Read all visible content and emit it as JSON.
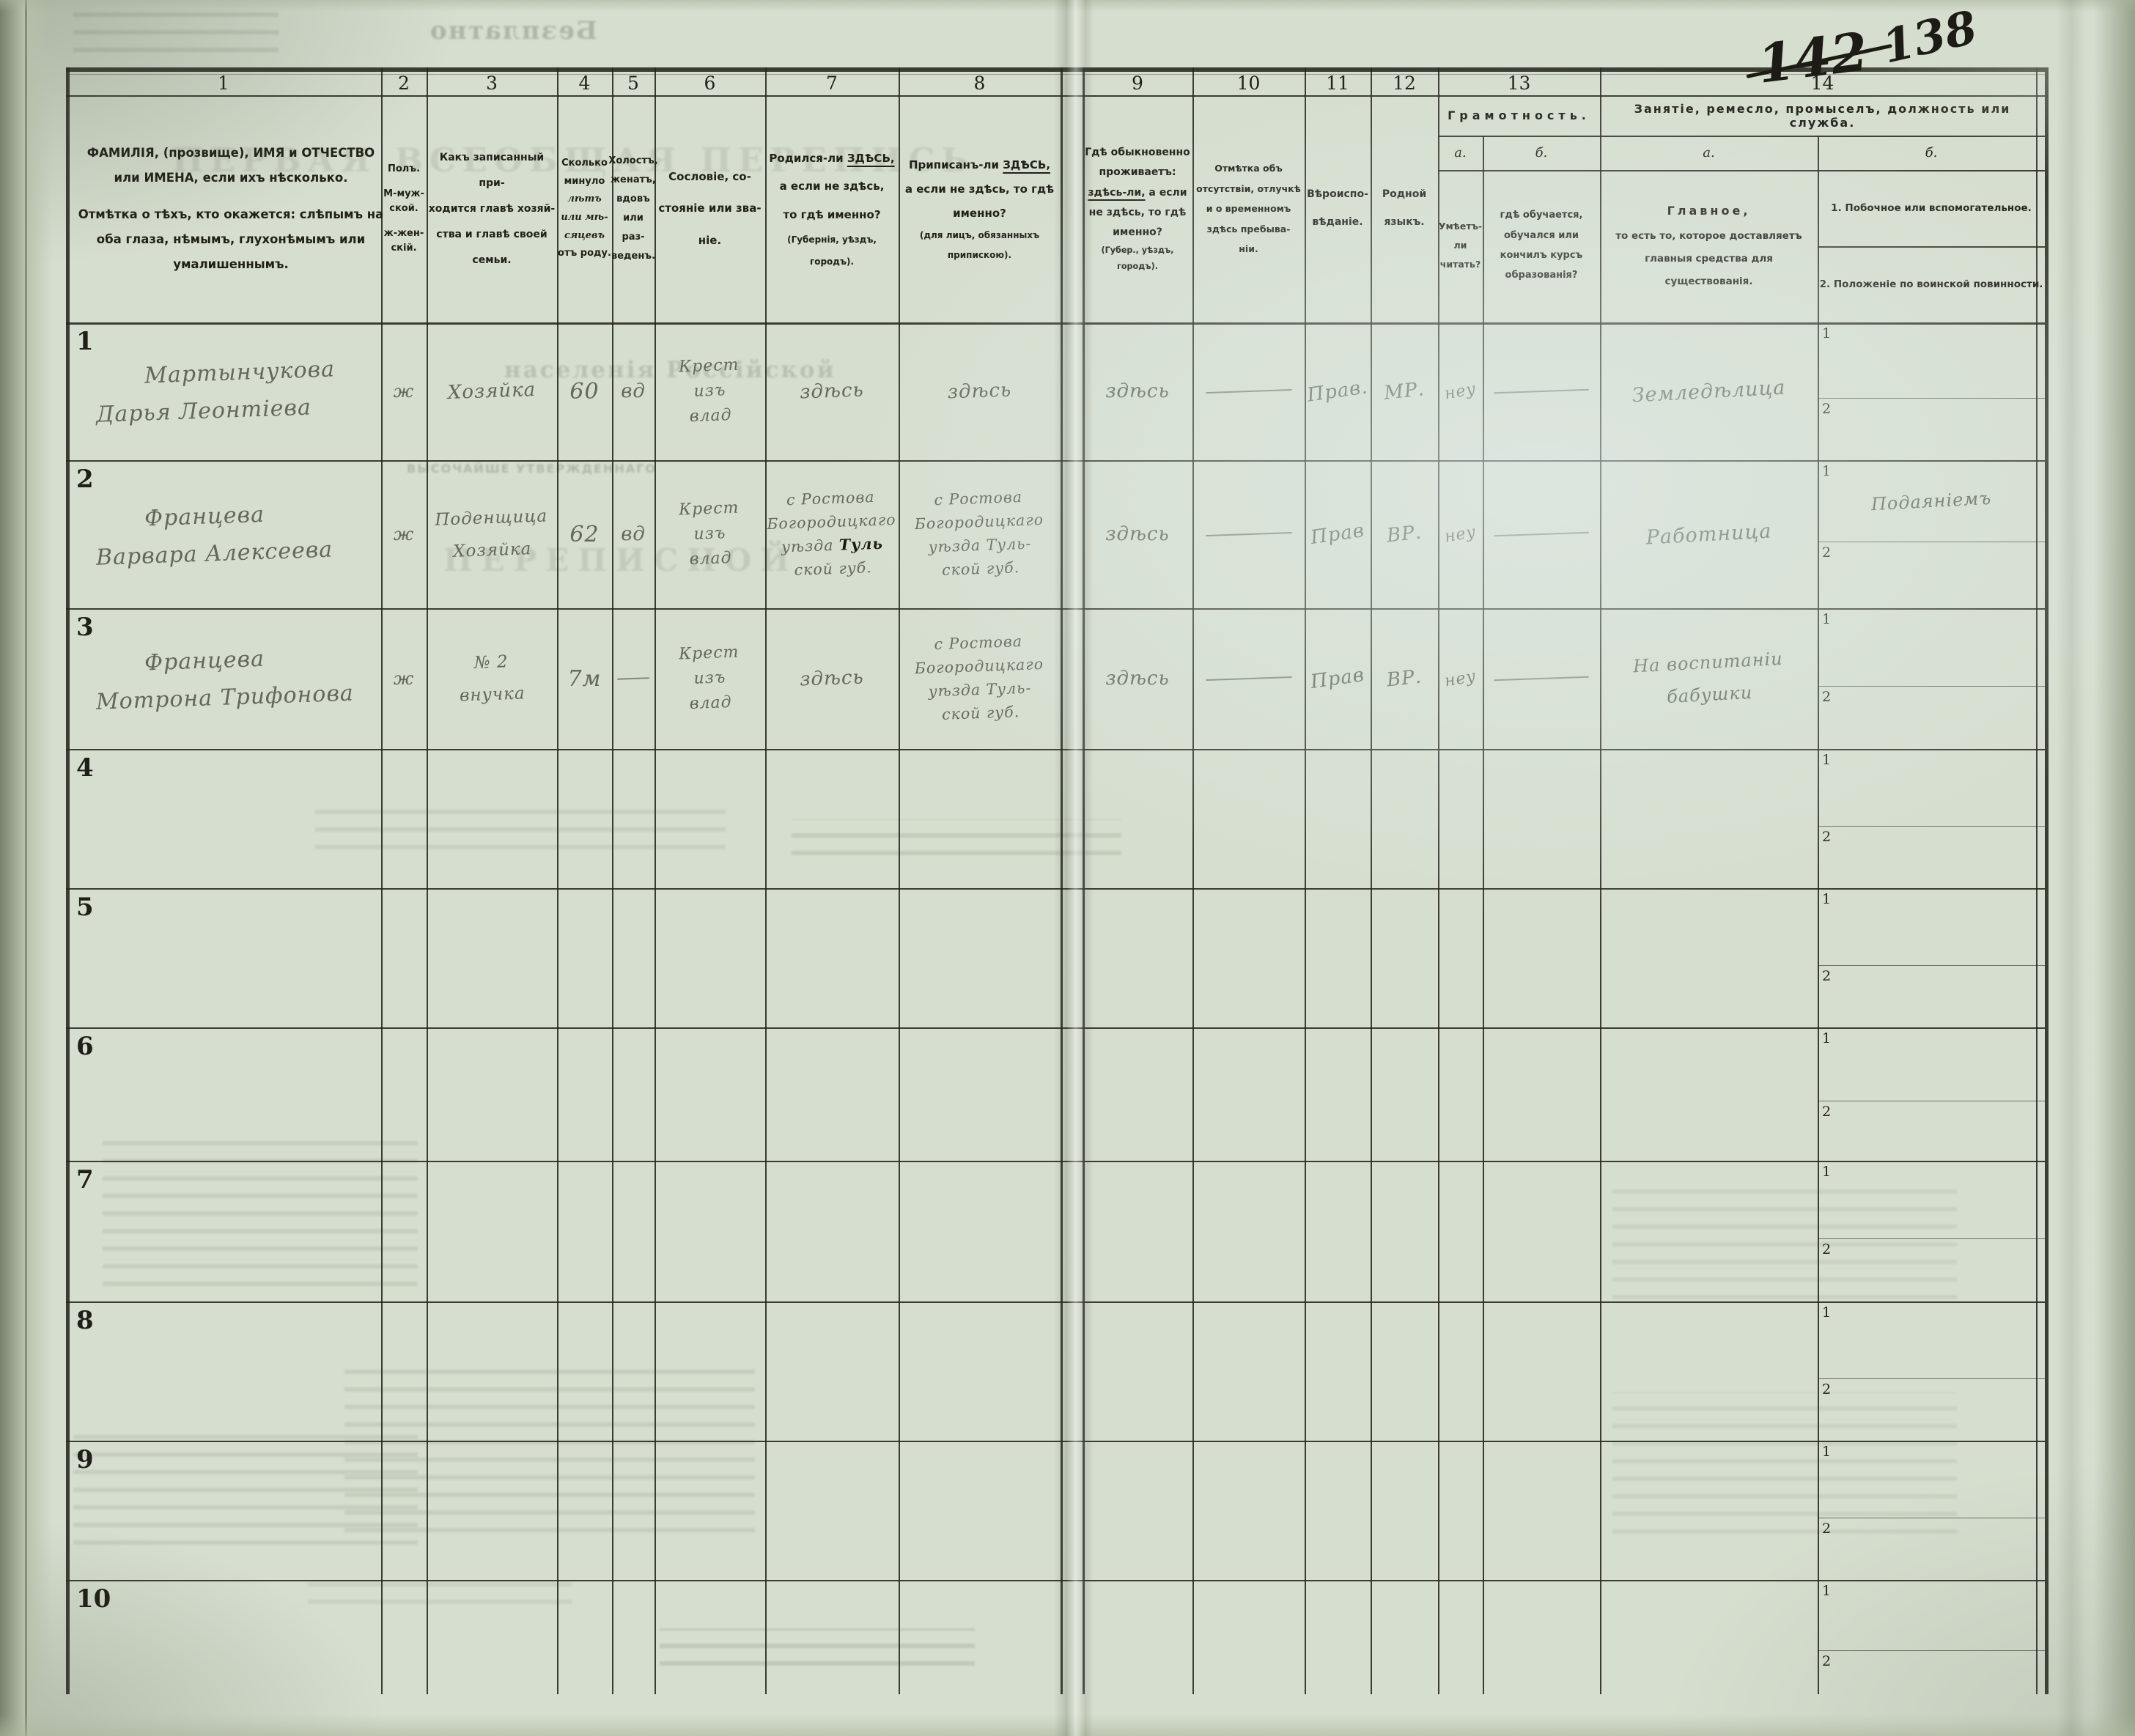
{
  "page": {
    "corner_crossed": "142",
    "corner": "138"
  },
  "bleed": {
    "free": "Безплатно",
    "title": "ПЕРВАЯ ВСЕОБЩАЯ ПЕРЕПИСЬ",
    "subtitle": "населенія Россійской",
    "approved": "ВЫСОЧАЙШЕ УТВЕРЖДЕННАГО",
    "sheet": "ПЕРЕПИСНОЙ"
  },
  "header": {
    "col1": {
      "num": "1",
      "p1": "ФАМИЛІЯ, (прозвище), ИМЯ и ОТЧЕСТВО или ИМЕНА, если ихъ нѣсколько.",
      "p2": "Отмѣтка о тѣхъ, кто окажется: слѣпымъ на оба глаза, нѣмымъ, глухонѣмымъ или умалишеннымъ."
    },
    "col2": {
      "num": "2",
      "lines": [
        "Полъ.",
        "",
        "М-муж-",
        "ской.",
        "",
        "ж-жен-",
        "скій."
      ]
    },
    "col3": {
      "num": "3",
      "lines": [
        "Какъ записанный при-",
        "ходится главѣ хозяй-",
        "ства и главѣ своей",
        "семьи."
      ]
    },
    "col4": {
      "num": "4",
      "lines": [
        "Сколько",
        "минуло",
        "лѣтъ",
        "или мѣ-",
        "сяцевъ",
        "отъ роду."
      ]
    },
    "col5": {
      "num": "5",
      "lines": [
        "Холостъ,",
        "женатъ,",
        "вдовъ",
        "или раз-",
        "веденъ."
      ]
    },
    "col6": {
      "num": "6",
      "lines": [
        "Сословіе, со-",
        "стояніе или зва-",
        "ніе."
      ]
    },
    "col7": {
      "num": "7",
      "lines": [
        "Родился-ли *ЗДѢСЬ,*",
        "а если не здѣсь,",
        "то гдѣ именно?",
        "(Губернія, уѣздъ, городъ)."
      ]
    },
    "col8": {
      "num": "8",
      "lines": [
        "Приписанъ-ли *ЗДѢСЬ,*",
        "а если не здѣсь, то гдѣ",
        "именно?",
        "(для лицъ, обязанныхъ",
        "припискою)."
      ]
    },
    "col9": {
      "num": "9",
      "lines": [
        "Гдѣ обыкновенно",
        "проживаетъ:",
        "*здѣсь-ли,* а если",
        "не здѣсь, то гдѣ",
        "именно?",
        "(Губер., уѣздъ, городъ)."
      ]
    },
    "col10": {
      "num": "10",
      "lines": [
        "Отмѣтка объ",
        "отсутствіи, отлучкѣ",
        "и о временномъ",
        "здѣсь пребыва-",
        "ніи."
      ]
    },
    "col11": {
      "num": "11",
      "lines": [
        "Вѣроиспо-",
        "",
        "вѣданіе."
      ]
    },
    "col12": {
      "num": "12",
      "lines": [
        "Родной",
        "",
        "языкъ."
      ]
    },
    "col13": {
      "num": "13",
      "title": "Грамотность.",
      "a_label": "а.",
      "b_label": "б.",
      "a_lines": [
        "Умѣетъ-",
        "ли",
        "читать?"
      ],
      "b_lines": [
        "гдѣ обучается,",
        "обучался или",
        "кончилъ курсъ",
        "образованія?"
      ]
    },
    "col14": {
      "num": "14",
      "title": "Занятіе, ремесло, промыселъ, должность или служба.",
      "a_label": "а.",
      "b_label": "б.",
      "a_lines": [
        "Главное,",
        "то есть то, которое доставляетъ",
        "главныя средства для существованія."
      ],
      "b1": "1.  Побочное или вспомогательное.",
      "b2": "2.  Положеніе по воинской повинности."
    }
  },
  "sub_labels": {
    "one": "1",
    "two": "2"
  },
  "rows": [
    {
      "num": "1",
      "c1": [
        "Мартынчукова",
        "Дарья Леонтіева"
      ],
      "c2": "ж",
      "c3": [
        "Хозяйка"
      ],
      "c4": "60",
      "c5": "вд",
      "c6": [
        "Крест",
        "изъ",
        "влад"
      ],
      "c7": [
        "здѣсь"
      ],
      "c8": [
        "здѣсь"
      ],
      "c9": [
        "здѣсь"
      ],
      "c10": "—",
      "c11": "Прав.",
      "c12": "МР.",
      "c13a": "неу",
      "c13b": "—",
      "c14a": [
        "Земледѣлица"
      ],
      "c14b1": "",
      "c14b2": ""
    },
    {
      "num": "2",
      "c1": [
        "Францева",
        "Варвара Алексеева"
      ],
      "c2": "ж",
      "c3": [
        "Поденщица",
        "Хозяйка"
      ],
      "c4": "62",
      "c5": "вд",
      "c6": [
        "Крест",
        "изъ",
        "влад"
      ],
      "c7": [
        "с Ростова",
        "Богородицкаго",
        "уѣзда ¤Туль",
        "ской губ."
      ],
      "c8": [
        "с Ростова",
        "Богородицкаго",
        "уѣзда Туль-",
        "ской губ."
      ],
      "c9": [
        "здѣсь"
      ],
      "c10": "—",
      "c11": "Прав",
      "c12": "ВР.",
      "c13a": "неу",
      "c13b": "—",
      "c14a": [
        "Работница"
      ],
      "c14b1": "Подаяніемъ",
      "c14b2": ""
    },
    {
      "num": "3",
      "c1": [
        "Францева",
        "Мотрона Трифонова"
      ],
      "c2": "ж",
      "c3": [
        "№ 2",
        "внучка"
      ],
      "c4": "7м",
      "c5": "—",
      "c6": [
        "Крест",
        "изъ",
        "влад"
      ],
      "c7": [
        "здѣсь"
      ],
      "c8": [
        "с Ростова",
        "Богородицкаго",
        "уѣзда Туль-",
        "ской губ."
      ],
      "c9": [
        "здѣсь"
      ],
      "c10": "—",
      "c11": "Прав",
      "c12": "ВР.",
      "c13a": "неу",
      "c13b": "—",
      "c14a": [
        "На воспитаніи",
        "бабушки"
      ],
      "c14b1": "",
      "c14b2": ""
    },
    {
      "num": "4"
    },
    {
      "num": "5"
    },
    {
      "num": "6"
    },
    {
      "num": "7"
    },
    {
      "num": "8"
    },
    {
      "num": "9"
    },
    {
      "num": "10"
    }
  ]
}
